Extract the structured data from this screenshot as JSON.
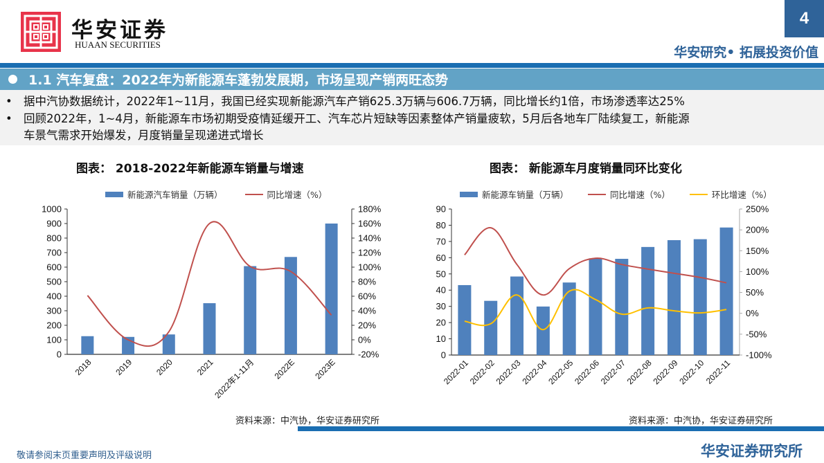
{
  "header": {
    "logo_cn": "华安证券",
    "logo_en": "HUAAN SECURITIES",
    "page_number": "4",
    "slogan": "华安研究• 拓展投资价值"
  },
  "section": {
    "title": "1.1 汽车复盘：2022年为新能源车蓬勃发展期，市场呈现产销两旺态势"
  },
  "bullets": [
    {
      "text": "据中汽协数据统计，2022年1~11月，我国已经实现新能源汽车产销625.3万辆与606.7万辆，同比增长约1倍，市场渗透率达25%"
    },
    {
      "text": "回顾2022年，1~4月，新能源车市场初期受疫情延缓开工、汽车芯片短缺等因素整体产销量疲软，5月后各地车厂陆续复工，新能源",
      "cont": "车景气需求开始爆发，月度销量呈现递进式增长"
    }
  ],
  "colors": {
    "bar": "#4f81bd",
    "yoy_line": "#c0504d",
    "mom_line": "#ffc000",
    "brand_blue": "#1a6eb2",
    "section_bg": "#62a3c6"
  },
  "charts": {
    "left": {
      "title": "图表：  2018-2022年新能源车销量与增速",
      "legend_bar": "新能源汽车销量（万辆）",
      "legend_line": "同比增速（%）",
      "source": "资料来源：中汽协，华安证券研究所"
    },
    "right": {
      "title": "图表：  新能源车月度销量同环比变化",
      "legend_bar": "新能源车销量（万辆）",
      "legend_line1": "同比增速（%）",
      "legend_line2": "环比增速（%）",
      "source": "资料来源：中汽协，华安证券研究所"
    }
  },
  "chart_data": [
    {
      "type": "bar",
      "title": "2018-2022年新能源车销量与增速",
      "categories": [
        "2018",
        "2019",
        "2020",
        "2021",
        "2022年1-11月",
        "2022E",
        "2023E"
      ],
      "series": [
        {
          "name": "新能源汽车销量（万辆）",
          "type": "bar",
          "axis": "left",
          "values": [
            125,
            120,
            137,
            352,
            607,
            670,
            900
          ]
        },
        {
          "name": "同比增速（%）",
          "type": "line",
          "axis": "right",
          "values": [
            61,
            0,
            11,
            160,
            101,
            94,
            34
          ]
        }
      ],
      "ylim_left": [
        0,
        1000
      ],
      "yticks_left": [
        0,
        100,
        200,
        300,
        400,
        500,
        600,
        700,
        800,
        900,
        1000
      ],
      "ylim_right": [
        -20,
        180
      ],
      "yticks_right": [
        "-20%",
        "0%",
        "20%",
        "40%",
        "60%",
        "80%",
        "100%",
        "120%",
        "140%",
        "160%",
        "180%"
      ],
      "legend_position": "top"
    },
    {
      "type": "bar",
      "title": "新能源车月度销量同环比变化",
      "categories": [
        "2022-01",
        "2022-02",
        "2022-03",
        "2022-04",
        "2022-05",
        "2022-06",
        "2022-07",
        "2022-08",
        "2022-09",
        "2022-10",
        "2022-11"
      ],
      "series": [
        {
          "name": "新能源车销量（万辆）",
          "type": "bar",
          "axis": "left",
          "values": [
            43.1,
            33.4,
            48.4,
            29.9,
            44.7,
            59.6,
            59.3,
            66.6,
            70.8,
            71.4,
            78.6
          ]
        },
        {
          "name": "同比增速（%）",
          "type": "line",
          "axis": "right",
          "values": [
            140,
            205,
            117,
            44,
            107,
            132,
            117,
            106,
            96,
            86,
            73
          ]
        },
        {
          "name": "环比增速（%）",
          "type": "line",
          "axis": "right",
          "values": [
            -19,
            -25,
            44,
            -39,
            53,
            33,
            -2,
            13,
            6,
            1,
            9
          ]
        }
      ],
      "ylim_left": [
        0,
        90
      ],
      "yticks_left": [
        0,
        10,
        20,
        30,
        40,
        50,
        60,
        70,
        80,
        90
      ],
      "ylim_right": [
        -100,
        250
      ],
      "yticks_right": [
        "-100%",
        "-50%",
        "0%",
        "50%",
        "100%",
        "150%",
        "200%",
        "250%"
      ],
      "legend_position": "top"
    }
  ],
  "footer": {
    "disclaimer": "敬请参阅末页重要声明及评级说明",
    "brand": "华安证券研究所"
  }
}
